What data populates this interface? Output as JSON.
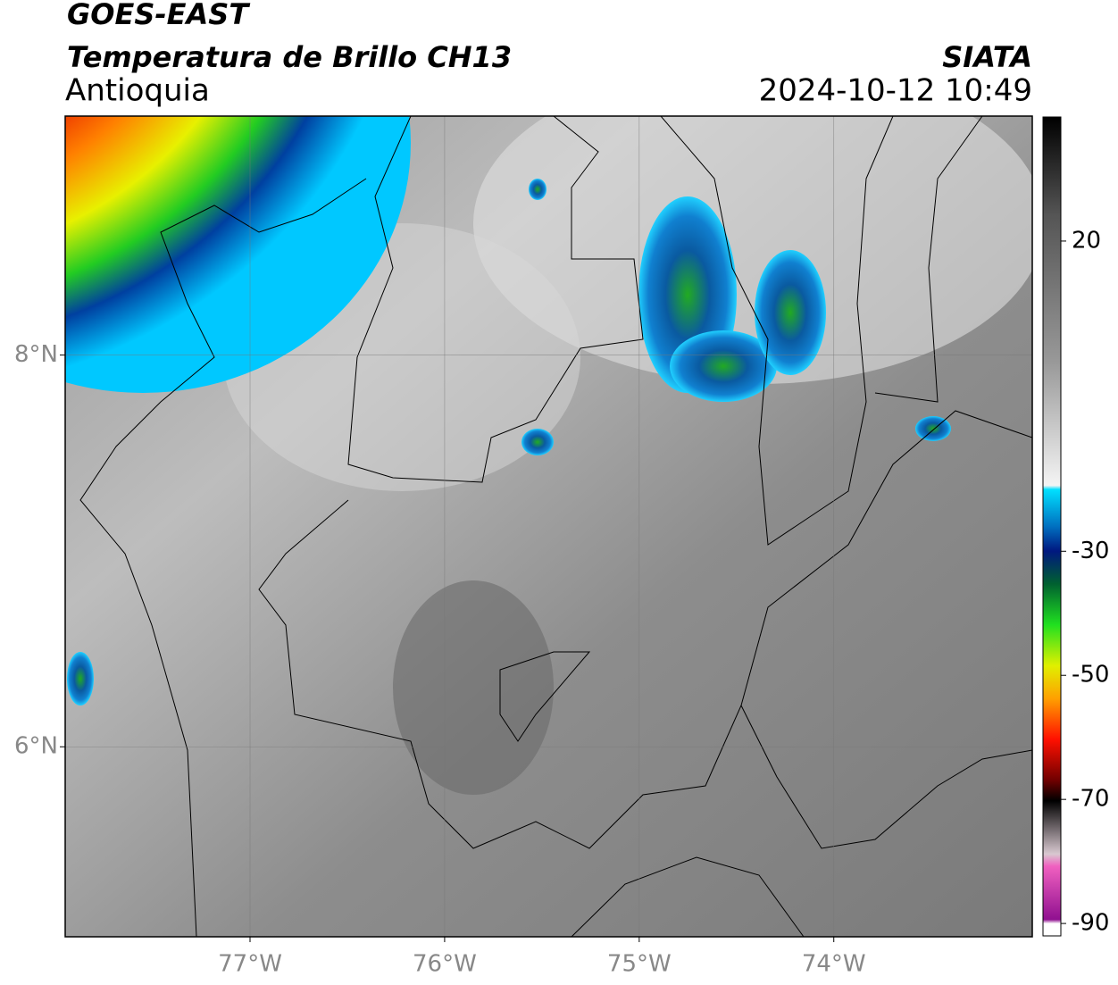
{
  "header": {
    "satellite": "GOES-EAST",
    "product": "Temperatura de Brillo CH13",
    "region": "Antioquia",
    "source": "SIATA",
    "datetime": "2024-10-12 10:49"
  },
  "map": {
    "xlim": [
      -77.95,
      -72.98
    ],
    "ylim": [
      5.03,
      9.22
    ],
    "xticks": [
      {
        "value": -77,
        "label": "77°W"
      },
      {
        "value": -76,
        "label": "76°W"
      },
      {
        "value": -75,
        "label": "75°W"
      },
      {
        "value": -74,
        "label": "74°W"
      }
    ],
    "yticks": [
      {
        "value": 8,
        "label": "8°N"
      },
      {
        "value": 6,
        "label": "6°N"
      }
    ],
    "grid": true
  },
  "colorbar": {
    "lim": [
      -92,
      40
    ],
    "ticks": [
      20,
      -30,
      -50,
      -70,
      -90
    ]
  }
}
